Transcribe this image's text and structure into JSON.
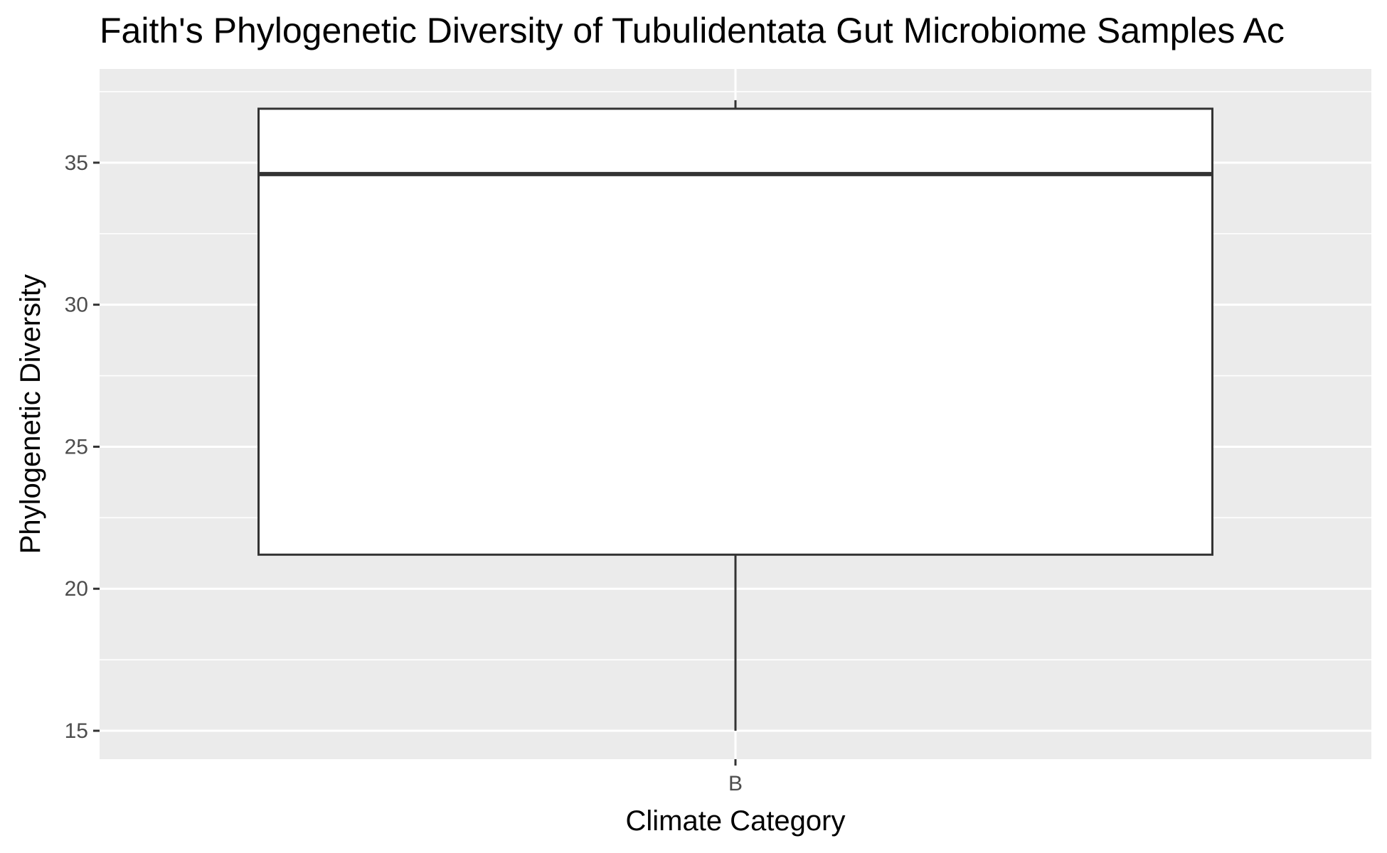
{
  "chart_data": {
    "type": "box",
    "title": "Faith's Phylogenetic Diversity of Tubulidentata Gut Microbiome Samples Ac",
    "xlabel": "Climate Category",
    "ylabel": "Phylogenetic Diversity",
    "categories": [
      "B"
    ],
    "boxes": [
      {
        "category": "B",
        "min": 15.0,
        "q1": 21.2,
        "median": 34.6,
        "q3": 36.9,
        "max": 37.2
      }
    ],
    "ylim": [
      14.0,
      38.3
    ],
    "yticks": [
      15,
      20,
      25,
      30,
      35
    ],
    "ytick_labels": [
      "15",
      "20",
      "25",
      "30",
      "35"
    ],
    "grid": true,
    "colors": {
      "panel": "#ebebeb",
      "grid": "#ffffff",
      "box_fill": "#ffffff",
      "box_line": "#333333",
      "tick": "#333333"
    }
  }
}
